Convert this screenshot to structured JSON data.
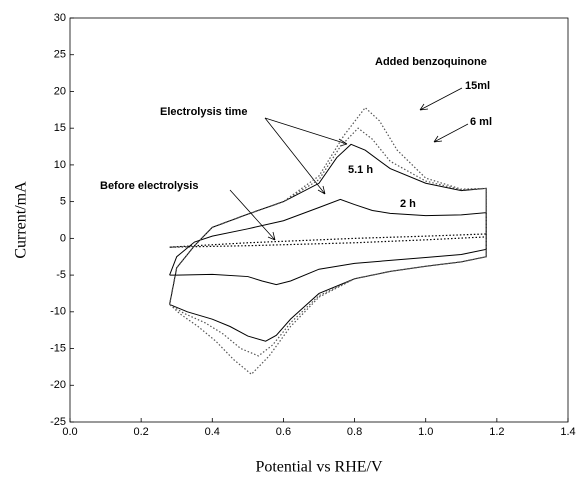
{
  "chart_data": {
    "type": "line",
    "xlabel": "Potential vs RHE/V",
    "ylabel": "Current/mA",
    "xlim": [
      0,
      1.4
    ],
    "ylim": [
      -25,
      30
    ],
    "xticks": [
      {
        "value": 0,
        "label": "0.0"
      },
      0.2,
      0.4,
      0.6,
      0.8,
      {
        "value": 1,
        "label": "1.0"
      },
      1.2,
      1.4
    ],
    "yticks": [
      -25,
      -20,
      -15,
      -10,
      -5,
      0,
      5,
      10,
      15,
      20,
      25,
      30
    ],
    "annotations": [
      "Added benzoquinone",
      "Electrolysis time"
    ],
    "series": [
      {
        "name": "Before electrolysis",
        "color": "#000000",
        "style": "dotted",
        "x": [
          0.28,
          0.5,
          0.8,
          1.0,
          1.17,
          1.17,
          1.0,
          0.8,
          0.5,
          0.28
        ],
        "values": [
          -1.2,
          -0.6,
          0,
          0.3,
          0.6,
          0.2,
          -0.2,
          -0.6,
          -1,
          -1.2
        ]
      },
      {
        "name": "2 h",
        "color": "#000000",
        "style": "solid",
        "x": [
          0.28,
          0.3,
          0.35,
          0.4,
          0.5,
          0.6,
          0.7,
          0.76,
          0.8,
          0.85,
          0.9,
          1.0,
          1.1,
          1.17,
          1.17,
          1.1,
          1.0,
          0.9,
          0.8,
          0.7,
          0.62,
          0.58,
          0.54,
          0.5,
          0.4,
          0.3,
          0.28
        ],
        "values": [
          -5,
          -2.5,
          -0.5,
          0.3,
          1.3,
          2.4,
          4.2,
          5.3,
          4.6,
          3.8,
          3.4,
          3.1,
          3.2,
          3.5,
          -1.5,
          -2.2,
          -2.6,
          -3,
          -3.4,
          -4.2,
          -5.8,
          -6.3,
          -5.8,
          -5.2,
          -4.9,
          -5,
          -5
        ]
      },
      {
        "name": "5.1 h",
        "color": "#000000",
        "style": "solid",
        "x": [
          0.28,
          0.3,
          0.35,
          0.4,
          0.5,
          0.6,
          0.7,
          0.75,
          0.79,
          0.83,
          0.9,
          1.0,
          1.1,
          1.17,
          1.17,
          1.1,
          1.0,
          0.9,
          0.8,
          0.7,
          0.62,
          0.58,
          0.55,
          0.5,
          0.45,
          0.4,
          0.33,
          0.28
        ],
        "values": [
          -9,
          -4,
          -1,
          1.5,
          3.3,
          5,
          7.5,
          11,
          12.8,
          12,
          9.5,
          7.5,
          6.5,
          6.8,
          -2.5,
          -3.2,
          -3.8,
          -4.5,
          -5.5,
          -7.5,
          -11,
          -13.2,
          -14,
          -13.3,
          -12,
          -11,
          -10,
          -9
        ]
      },
      {
        "name": "6 ml",
        "color": "#555555",
        "style": "dotted",
        "x": [
          0.28,
          0.3,
          0.35,
          0.4,
          0.5,
          0.6,
          0.7,
          0.76,
          0.81,
          0.85,
          0.9,
          1.0,
          1.1,
          1.17,
          1.17,
          1.1,
          1.0,
          0.9,
          0.8,
          0.7,
          0.62,
          0.57,
          0.53,
          0.48,
          0.43,
          0.38,
          0.32,
          0.28
        ],
        "values": [
          -9,
          -4,
          -1,
          1.5,
          3.3,
          5,
          8,
          12.5,
          15,
          13.5,
          10.5,
          7.8,
          6.6,
          6.8,
          -2.5,
          -3.2,
          -3.8,
          -4.5,
          -5.5,
          -7.8,
          -11.5,
          -14.5,
          -16,
          -15,
          -13,
          -11.5,
          -10.2,
          -9
        ]
      },
      {
        "name": "15ml",
        "color": "#555555",
        "style": "dotted",
        "x": [
          0.28,
          0.3,
          0.35,
          0.4,
          0.5,
          0.6,
          0.7,
          0.77,
          0.83,
          0.87,
          0.92,
          1.0,
          1.1,
          1.17,
          1.17,
          1.1,
          1.0,
          0.9,
          0.8,
          0.7,
          0.62,
          0.56,
          0.51,
          0.46,
          0.41,
          0.36,
          0.31,
          0.28
        ],
        "values": [
          -9,
          -4,
          -1,
          1.5,
          3.3,
          5,
          8.5,
          14,
          17.8,
          16,
          12,
          8.2,
          6.7,
          6.8,
          -2.5,
          -3.2,
          -3.8,
          -4.5,
          -5.5,
          -8,
          -12,
          -16,
          -18.5,
          -16.5,
          -14,
          -12,
          -10.3,
          -9
        ]
      }
    ]
  }
}
